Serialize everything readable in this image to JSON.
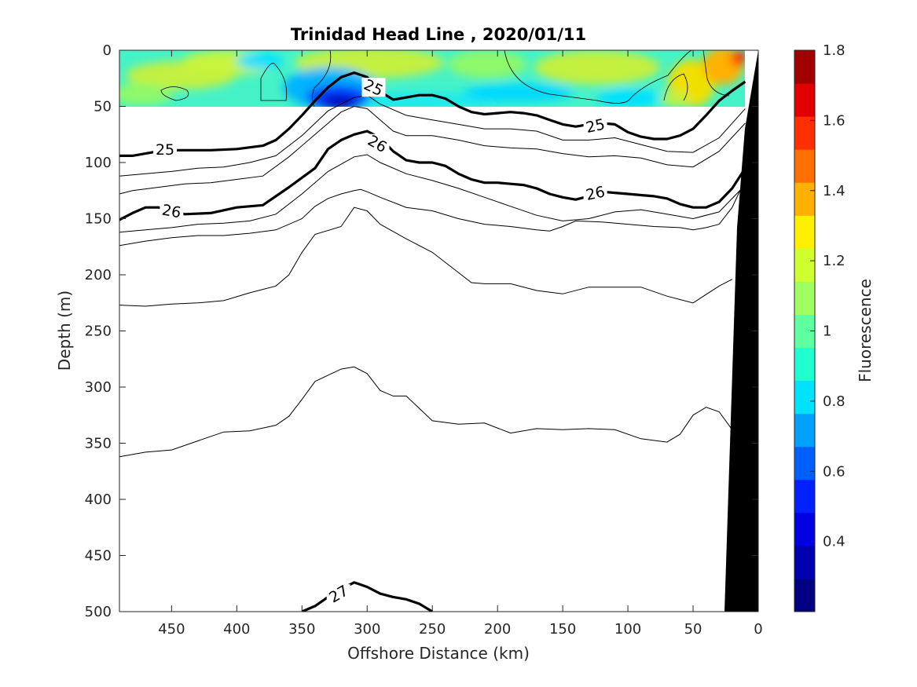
{
  "chart_data": {
    "type": "contour",
    "title": "Trinidad Head Line , 2020/01/11",
    "xlabel": "Offshore Distance (km)",
    "ylabel": "Depth (m)",
    "colorbar_label": "Fluorescence",
    "xlim": [
      490,
      0
    ],
    "ylim": [
      0,
      500
    ],
    "x_ticks": [
      "450",
      "400",
      "350",
      "300",
      "250",
      "200",
      "150",
      "100",
      "50",
      "0"
    ],
    "y_ticks": [
      "0",
      "50",
      "100",
      "150",
      "200",
      "250",
      "300",
      "350",
      "400",
      "450",
      "500"
    ],
    "colorbar": {
      "range": [
        0.2,
        1.8
      ],
      "tick_labels": [
        "0.4",
        "0.6",
        "0.8",
        "1",
        "1.2",
        "1.4",
        "1.6",
        "1.8"
      ],
      "colors": [
        "#000080",
        "#0000B0",
        "#0000E0",
        "#0020FF",
        "#0060FF",
        "#00A0FF",
        "#00E0FF",
        "#20FFD0",
        "#60FFA0",
        "#A0FF60",
        "#D0FF30",
        "#FFF000",
        "#FFB000",
        "#FF7000",
        "#FF3000",
        "#E00000",
        "#A00000"
      ]
    },
    "fluorescence_layer": {
      "depth_range": [
        0,
        50
      ]
    },
    "contour_labels": [
      {
        "text": "25",
        "x": 295,
        "y": 33
      },
      {
        "text": "25",
        "x": 455,
        "y": 88
      },
      {
        "text": "25",
        "x": 125,
        "y": 67
      },
      {
        "text": "26",
        "x": 292,
        "y": 83
      },
      {
        "text": "26",
        "x": 450,
        "y": 143
      },
      {
        "text": "26",
        "x": 125,
        "y": 127
      },
      {
        "text": "27",
        "x": 322,
        "y": 484
      }
    ],
    "bold_contours": [
      {
        "level": "25",
        "x": [
          490,
          480,
          465,
          455,
          440,
          420,
          400,
          380,
          370,
          360,
          350,
          340,
          330,
          320,
          310,
          300,
          290,
          280,
          270,
          260,
          250,
          240,
          230,
          220,
          210,
          200,
          190,
          180,
          170,
          160,
          150,
          140,
          130,
          120,
          110,
          100,
          90,
          80,
          70,
          60,
          50,
          40,
          30,
          20,
          10
        ],
        "y": [
          94,
          94,
          91,
          89,
          89,
          89,
          88,
          85,
          80,
          70,
          58,
          45,
          33,
          24,
          20,
          24,
          37,
          44,
          42,
          40,
          40,
          43,
          50,
          55,
          57,
          56,
          55,
          56,
          58,
          62,
          66,
          68,
          66,
          65,
          66,
          73,
          77,
          79,
          79,
          76,
          70,
          58,
          45,
          36,
          28
        ]
      },
      {
        "level": "26",
        "x": [
          490,
          480,
          470,
          460,
          440,
          420,
          400,
          380,
          360,
          340,
          330,
          320,
          310,
          300,
          290,
          280,
          270,
          260,
          250,
          240,
          230,
          220,
          210,
          200,
          190,
          180,
          170,
          160,
          150,
          140,
          130,
          120,
          110,
          100,
          90,
          80,
          70,
          60,
          50,
          40,
          30,
          20,
          10
        ],
        "y": [
          151,
          145,
          140,
          140,
          146,
          145,
          140,
          138,
          122,
          105,
          88,
          80,
          75,
          72,
          78,
          90,
          98,
          100,
          100,
          103,
          110,
          115,
          118,
          118,
          119,
          120,
          123,
          128,
          131,
          133,
          130,
          126,
          127,
          128,
          129,
          130,
          132,
          137,
          140,
          140,
          135,
          123,
          105
        ]
      },
      {
        "level": "27",
        "x": [
          350,
          340,
          330,
          320,
          310,
          300,
          290,
          280,
          270,
          260,
          250
        ],
        "y": [
          500,
          495,
          487,
          480,
          474,
          478,
          484,
          487,
          489,
          493,
          500
        ]
      }
    ],
    "thin_contours": [
      {
        "x": [
          490,
          480,
          460,
          440,
          420,
          400,
          380,
          360,
          340,
          320,
          310,
          300,
          290,
          280,
          270,
          250,
          230,
          210,
          190,
          170,
          150,
          130,
          110,
          90,
          70,
          50,
          30,
          10
        ],
        "y": [
          128,
          125,
          122,
          119,
          118,
          115,
          112,
          95,
          75,
          55,
          50,
          52,
          62,
          72,
          76,
          76,
          80,
          85,
          87,
          88,
          92,
          95,
          94,
          96,
          102,
          104,
          90,
          65
        ]
      },
      {
        "x": [
          490,
          470,
          450,
          430,
          410,
          390,
          370,
          350,
          330,
          310,
          300,
          290,
          270,
          250,
          230,
          210,
          190,
          170,
          150,
          130,
          110,
          90,
          70,
          50,
          30,
          10
        ],
        "y": [
          112,
          110,
          108,
          105,
          104,
          100,
          94,
          76,
          54,
          42,
          40,
          48,
          58,
          62,
          66,
          70,
          70,
          72,
          80,
          80,
          78,
          84,
          90,
          91,
          78,
          52
        ]
      },
      {
        "x": [
          490,
          470,
          450,
          430,
          410,
          390,
          370,
          350,
          330,
          310,
          300,
          290,
          270,
          250,
          230,
          210,
          190,
          170,
          150,
          130,
          110,
          90,
          70,
          50,
          30,
          10
        ],
        "y": [
          162,
          160,
          158,
          155,
          154,
          152,
          146,
          128,
          108,
          95,
          93,
          100,
          110,
          116,
          123,
          131,
          139,
          147,
          152,
          150,
          144,
          142,
          146,
          150,
          144,
          120
        ]
      },
      {
        "x": [
          490,
          470,
          450,
          430,
          410,
          390,
          370,
          350,
          340,
          330,
          320,
          310,
          305,
          300,
          290,
          270,
          250,
          230,
          210,
          190,
          170,
          160,
          150,
          140,
          120,
          100,
          80,
          60,
          50,
          40,
          30,
          20,
          10
        ],
        "y": [
          174,
          170,
          167,
          165,
          165,
          163,
          160,
          150,
          139,
          132,
          128,
          125,
          124,
          126,
          131,
          140,
          143,
          150,
          155,
          157,
          160,
          161,
          157,
          152,
          153,
          155,
          157,
          158,
          160,
          158,
          155,
          140,
          115
        ]
      },
      {
        "x": [
          490,
          470,
          450,
          430,
          410,
          390,
          370,
          360,
          350,
          340,
          320,
          310,
          300,
          290,
          270,
          250,
          230,
          220,
          210,
          190,
          170,
          150,
          130,
          110,
          90,
          70,
          50,
          30,
          20
        ],
        "y": [
          227,
          228,
          226,
          225,
          223,
          216,
          210,
          200,
          180,
          164,
          157,
          140,
          143,
          155,
          168,
          180,
          198,
          207,
          208,
          208,
          214,
          217,
          211,
          211,
          211,
          219,
          225,
          210,
          204
        ]
      },
      {
        "x": [
          490,
          470,
          450,
          430,
          410,
          390,
          370,
          360,
          350,
          340,
          320,
          310,
          300,
          290,
          280,
          270,
          250,
          230,
          210,
          190,
          170,
          150,
          130,
          110,
          90,
          70,
          60,
          50,
          40,
          30,
          20
        ],
        "y": [
          362,
          358,
          356,
          348,
          340,
          339,
          334,
          326,
          311,
          295,
          284,
          282,
          288,
          303,
          308,
          308,
          330,
          333,
          332,
          341,
          337,
          338,
          337,
          338,
          346,
          349,
          342,
          325,
          318,
          322,
          338
        ]
      }
    ]
  }
}
